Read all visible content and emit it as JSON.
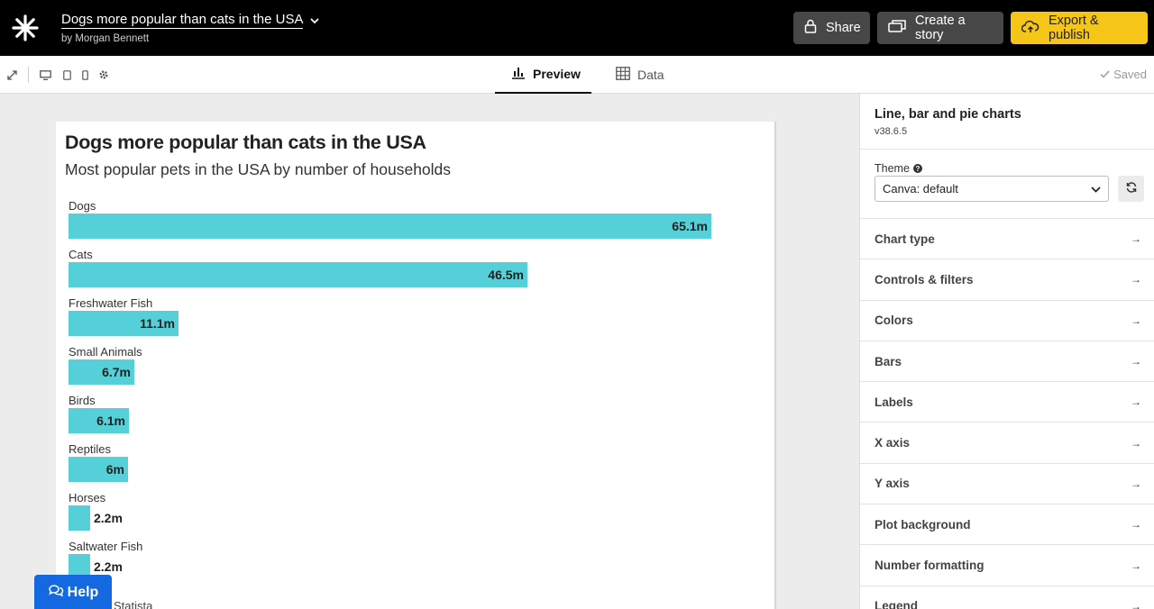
{
  "app": {
    "doc_title": "Dogs more popular than cats in the USA",
    "author": "by Morgan Bennett",
    "buttons": {
      "share": "Share",
      "create_story": "Create a story",
      "export": "Export & publish"
    },
    "accent_color": "#f5c518"
  },
  "toolbar": {
    "icons": [
      "expand-icon",
      "desktop-icon",
      "tablet-icon",
      "mobile-icon",
      "settings-icon"
    ],
    "tabs": {
      "preview": "Preview",
      "data": "Data"
    },
    "status": "Saved"
  },
  "chart_data": {
    "type": "bar",
    "orientation": "horizontal",
    "title": "Dogs more popular than cats in the USA",
    "subtitle": "Most popular pets in the USA by number of households",
    "categories": [
      "Dogs",
      "Cats",
      "Freshwater Fish",
      "Small Animals",
      "Birds",
      "Reptiles",
      "Horses",
      "Saltwater Fish"
    ],
    "values": [
      65.1,
      46.5,
      11.1,
      6.7,
      6.1,
      6,
      2.2,
      2.2
    ],
    "value_labels": [
      "65.1m",
      "46.5m",
      "11.1m",
      "6.7m",
      "6.1m",
      "6m",
      "2.2m",
      "2.2m"
    ],
    "unit": "m",
    "bar_color": "#56d0d8",
    "source": "Statista"
  },
  "panel": {
    "name": "Line, bar and pie charts",
    "version": "v38.6.5",
    "theme_label": "Theme",
    "theme_value": "Canva: default",
    "sections": [
      "Chart type",
      "Controls & filters",
      "Colors",
      "Bars",
      "Labels",
      "X axis",
      "Y axis",
      "Plot background",
      "Number formatting",
      "Legend"
    ]
  },
  "help": {
    "label": "Help"
  }
}
